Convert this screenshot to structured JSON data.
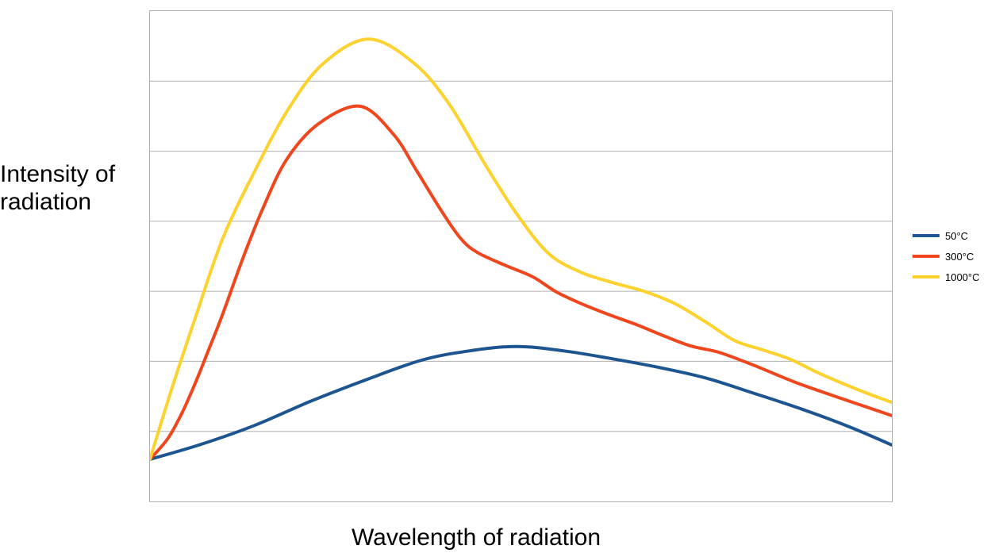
{
  "y_axis": {
    "title": "Intensity of radiation"
  },
  "x_axis": {
    "title": "Wavelength of radiation"
  },
  "legend": {
    "position": "right",
    "items": [
      {
        "label": "50°C",
        "color": "#1c5590"
      },
      {
        "label": "300°C",
        "color": "#f0461e"
      },
      {
        "label": "1000°C",
        "color": "#fdd22e"
      }
    ]
  },
  "colors": {
    "plot_border": "#b0b0b0",
    "gridline": "#b0b0b0",
    "background": "#ffffff",
    "text": "#000000"
  },
  "chart_data": {
    "type": "line",
    "title": "",
    "xlabel": "Wavelength of radiation",
    "ylabel": "Intensity of radiation",
    "legend_position": "right",
    "grid": {
      "horizontal_divisions": 7,
      "vertical_gridlines": false,
      "x_ticks": "none",
      "y_ticks": "none"
    },
    "axes_note": "Qualitative blackbody-radiation style curves; axes have no numeric scale. Points are normalized: x = fraction along wavelength axis (0-1), y = fraction of intensity axis height (0-1). All curves start from a common point at the left axis.",
    "xlim": [
      0,
      1
    ],
    "ylim": [
      0,
      1
    ],
    "series": [
      {
        "name": "50°C",
        "color": "#1c5590",
        "points": [
          [
            0.0,
            0.086
          ],
          [
            0.066,
            0.115
          ],
          [
            0.141,
            0.155
          ],
          [
            0.216,
            0.204
          ],
          [
            0.291,
            0.248
          ],
          [
            0.366,
            0.288
          ],
          [
            0.43,
            0.307
          ],
          [
            0.494,
            0.316
          ],
          [
            0.558,
            0.307
          ],
          [
            0.623,
            0.291
          ],
          [
            0.687,
            0.273
          ],
          [
            0.751,
            0.251
          ],
          [
            0.815,
            0.22
          ],
          [
            0.879,
            0.188
          ],
          [
            0.943,
            0.152
          ],
          [
            1.0,
            0.115
          ]
        ]
      },
      {
        "name": "300°C",
        "color": "#f0461e",
        "points": [
          [
            0.0,
            0.086
          ],
          [
            0.024,
            0.128
          ],
          [
            0.043,
            0.18
          ],
          [
            0.061,
            0.241
          ],
          [
            0.079,
            0.309
          ],
          [
            0.098,
            0.382
          ],
          [
            0.125,
            0.495
          ],
          [
            0.152,
            0.597
          ],
          [
            0.184,
            0.697
          ],
          [
            0.227,
            0.77
          ],
          [
            0.283,
            0.806
          ],
          [
            0.328,
            0.749
          ],
          [
            0.36,
            0.673
          ],
          [
            0.393,
            0.592
          ],
          [
            0.419,
            0.536
          ],
          [
            0.441,
            0.508
          ],
          [
            0.478,
            0.482
          ],
          [
            0.516,
            0.458
          ],
          [
            0.548,
            0.427
          ],
          [
            0.585,
            0.401
          ],
          [
            0.622,
            0.379
          ],
          [
            0.655,
            0.361
          ],
          [
            0.692,
            0.338
          ],
          [
            0.729,
            0.317
          ],
          [
            0.767,
            0.304
          ],
          [
            0.815,
            0.277
          ],
          [
            0.868,
            0.244
          ],
          [
            0.922,
            0.215
          ],
          [
            1.0,
            0.175
          ]
        ]
      },
      {
        "name": "1000°C",
        "color": "#fdd22e",
        "points": [
          [
            0.0,
            0.086
          ],
          [
            0.029,
            0.228
          ],
          [
            0.061,
            0.374
          ],
          [
            0.098,
            0.536
          ],
          [
            0.141,
            0.673
          ],
          [
            0.184,
            0.794
          ],
          [
            0.232,
            0.891
          ],
          [
            0.294,
            0.943
          ],
          [
            0.355,
            0.895
          ],
          [
            0.403,
            0.811
          ],
          [
            0.451,
            0.689
          ],
          [
            0.494,
            0.587
          ],
          [
            0.537,
            0.506
          ],
          [
            0.58,
            0.468
          ],
          [
            0.622,
            0.447
          ],
          [
            0.665,
            0.429
          ],
          [
            0.708,
            0.403
          ],
          [
            0.751,
            0.364
          ],
          [
            0.788,
            0.328
          ],
          [
            0.826,
            0.309
          ],
          [
            0.863,
            0.29
          ],
          [
            0.901,
            0.262
          ],
          [
            0.954,
            0.228
          ],
          [
            1.0,
            0.202
          ]
        ]
      }
    ]
  }
}
